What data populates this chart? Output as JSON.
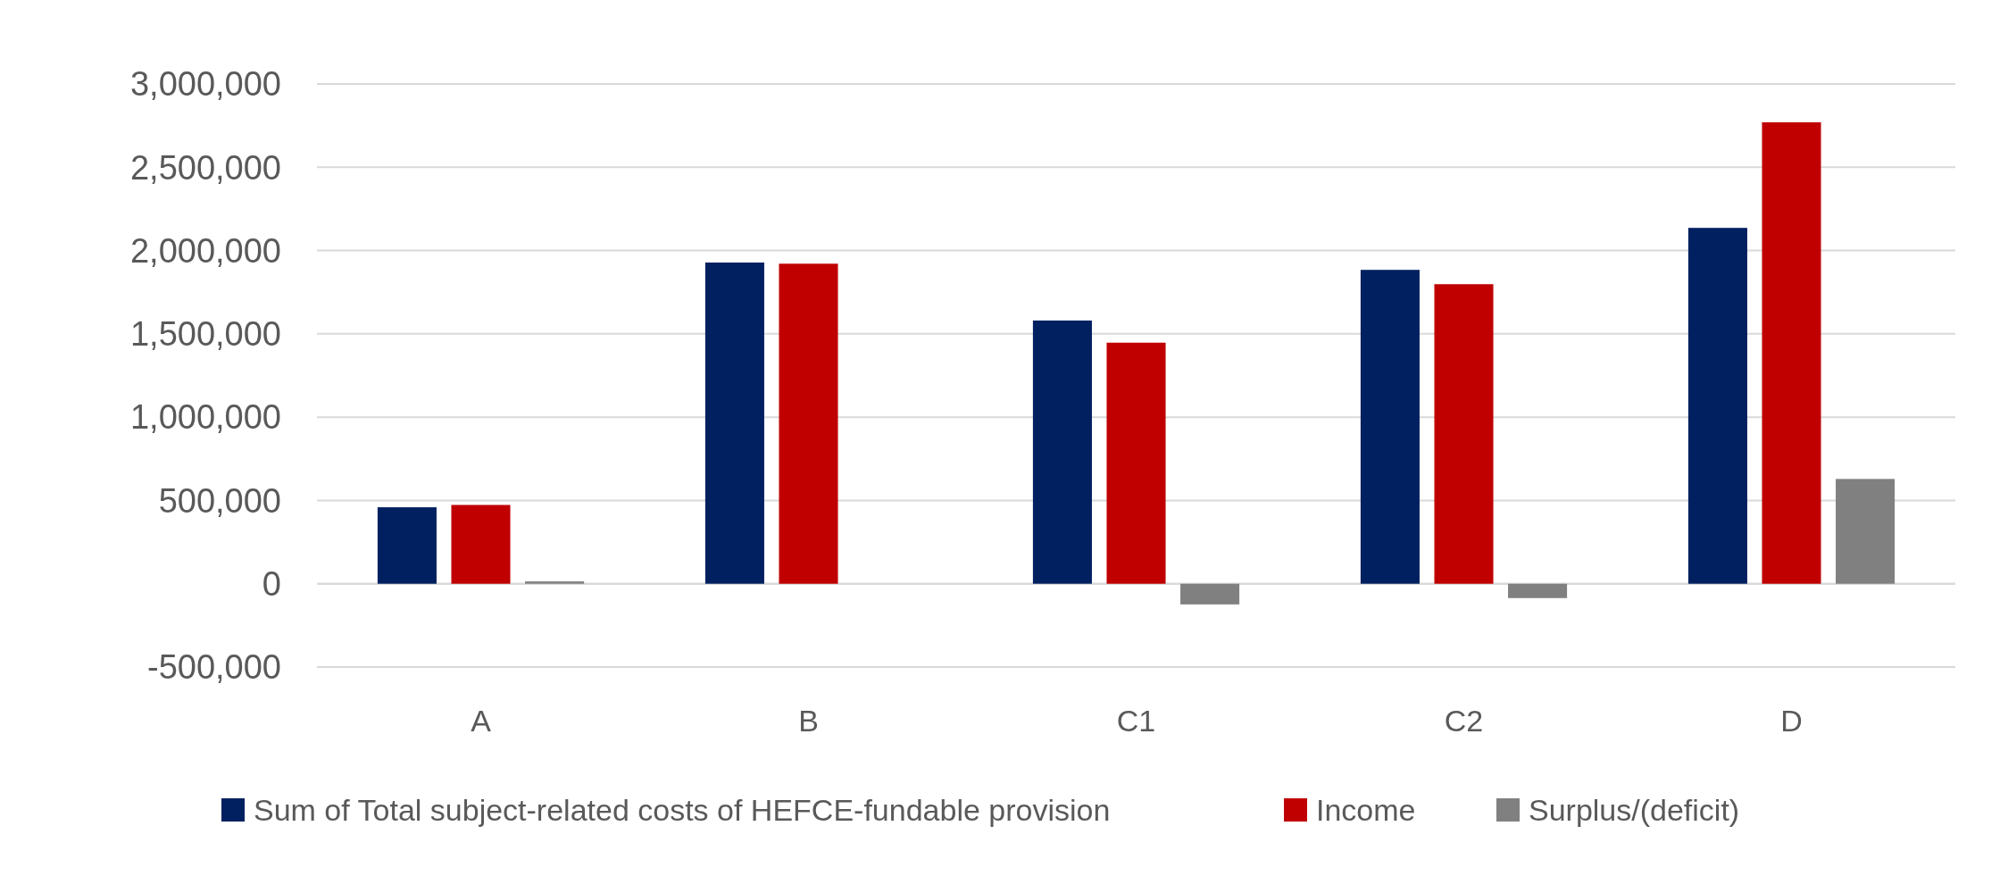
{
  "chart_data": {
    "type": "bar",
    "categories": [
      "A",
      "B",
      "C1",
      "C2",
      "D"
    ],
    "series": [
      {
        "name": "Sum of Total subject-related costs of HEFCE-fundable provision",
        "color": "#002060",
        "values": [
          459000,
          1928000,
          1580000,
          1884000,
          2136000
        ]
      },
      {
        "name": "Income",
        "color": "#c00000",
        "values": [
          473000,
          1921000,
          1447000,
          1798000,
          2770000
        ]
      },
      {
        "name": "Surplus/(deficit)",
        "color": "#808080",
        "values": [
          14000,
          0,
          -124000,
          -86000,
          629000
        ]
      }
    ],
    "ylim": [
      -500000,
      3000000
    ],
    "yticks": [
      {
        "value": -500000,
        "label": "-500,000"
      },
      {
        "value": 0,
        "label": "0"
      },
      {
        "value": 500000,
        "label": "500,000"
      },
      {
        "value": 1000000,
        "label": "1,000,000"
      },
      {
        "value": 1500000,
        "label": "1,500,000"
      },
      {
        "value": 2000000,
        "label": "2,000,000"
      },
      {
        "value": 2500000,
        "label": "2,500,000"
      },
      {
        "value": 3000000,
        "label": "3,000,000"
      }
    ],
    "grid": "y",
    "legend": "bottom"
  }
}
